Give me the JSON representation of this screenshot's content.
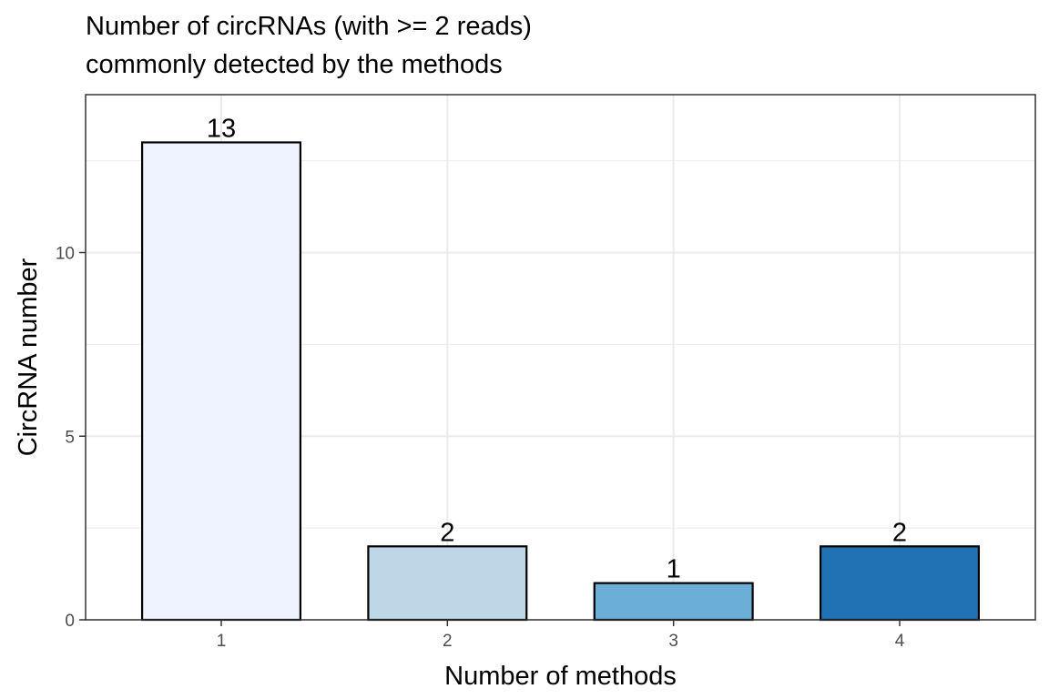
{
  "chart_data": {
    "type": "bar",
    "title_lines": [
      "Number of circRNAs (with >= 2 reads)",
      "commonly detected by the methods"
    ],
    "xlabel": "Number of methods",
    "ylabel": "CircRNA number",
    "categories": [
      "1",
      "2",
      "3",
      "4"
    ],
    "values": [
      13,
      2,
      1,
      2
    ],
    "data_labels": [
      "13",
      "2",
      "1",
      "2"
    ],
    "bar_colors": [
      "#eff3ff",
      "#bdd7e7",
      "#6baed6",
      "#2171b5"
    ],
    "ylim": [
      0,
      14.3
    ],
    "yticks": [
      0,
      5,
      10
    ],
    "ytick_labels": [
      "0",
      "5",
      "10"
    ],
    "grid": true,
    "legend": "none"
  }
}
